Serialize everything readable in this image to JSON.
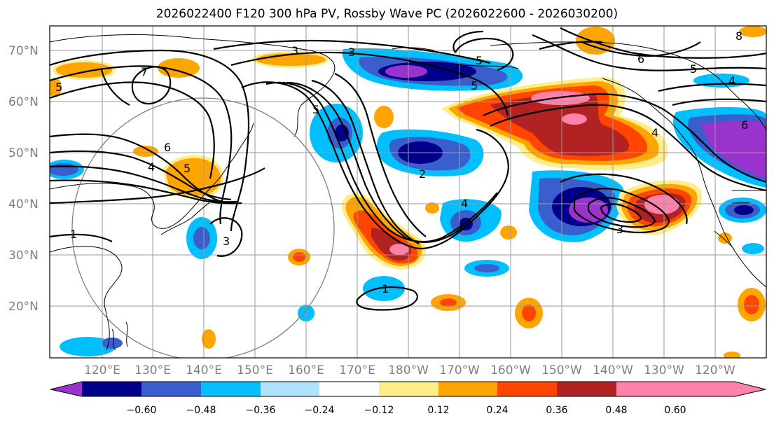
{
  "title": "2026022400 F120 300 hPa PV, Rossby Wave PC (2026022600 - 2026030200)",
  "map": {
    "lat_labels": [
      "70°N",
      "60°N",
      "50°N",
      "40°N",
      "30°N",
      "20°N"
    ],
    "lon_labels": [
      "120°E",
      "130°E",
      "140°E",
      "150°E",
      "160°E",
      "170°E",
      "180°W",
      "170°W",
      "160°W",
      "150°W",
      "140°W",
      "130°W",
      "120°W"
    ],
    "contour_labels": [
      "3",
      "7",
      "5",
      "6",
      "4",
      "5",
      "1",
      "3",
      "1",
      "5",
      "6",
      "5",
      "4",
      "8",
      "6",
      "5",
      "4",
      "3",
      "5",
      "4",
      "3",
      "2"
    ]
  },
  "colorbar": {
    "colors": [
      "#9a32cd",
      "#00008b",
      "#3a5fcd",
      "#00bfff",
      "#b0e2ff",
      "#ffffff",
      "#ffec8b",
      "#ffa500",
      "#ff4500",
      "#b22222",
      "#ff82ab"
    ],
    "ticks": [
      "−0.60",
      "−0.48",
      "−0.36",
      "−0.24",
      "−0.12",
      "0.12",
      "0.24",
      "0.36",
      "0.48",
      "0.60"
    ]
  }
}
